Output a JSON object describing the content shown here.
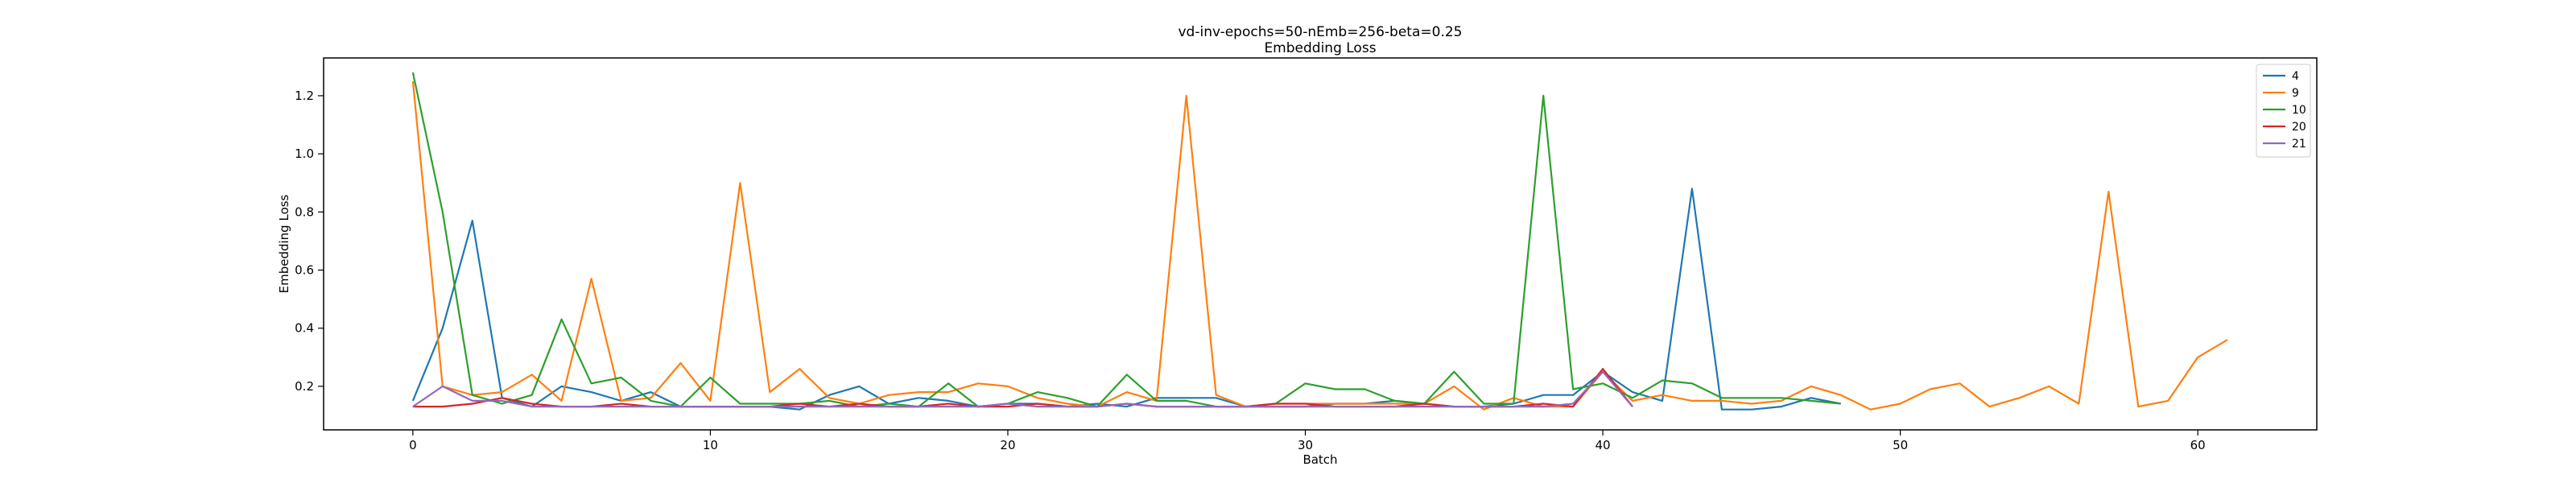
{
  "chart_data": {
    "type": "line",
    "title": "vd-inv-epochs=50-nEmb=256-beta=0.25",
    "subtitle": "Embedding Loss",
    "xlabel": "Batch",
    "ylabel": "Embedding Loss",
    "xlim": [
      -3,
      64
    ],
    "ylim": [
      0.05,
      1.33
    ],
    "xticks": [
      0,
      10,
      20,
      30,
      40,
      50,
      60
    ],
    "yticks": [
      0.2,
      0.4,
      0.6,
      0.8,
      1.0,
      1.2
    ],
    "xtick_labels": [
      "0",
      "10",
      "20",
      "30",
      "40",
      "50",
      "60"
    ],
    "ytick_labels": [
      "0.2",
      "0.4",
      "0.6",
      "0.8",
      "1.0",
      "1.2"
    ],
    "grid": false,
    "legend_position": "top-right",
    "series": [
      {
        "name": "4",
        "color": "#1f77b4",
        "values": [
          0.15,
          0.4,
          0.77,
          0.16,
          0.13,
          0.2,
          0.18,
          0.15,
          0.18,
          0.13,
          0.13,
          0.13,
          0.13,
          0.12,
          0.17,
          0.2,
          0.14,
          0.16,
          0.15,
          0.13,
          0.14,
          0.14,
          0.13,
          0.14,
          0.13,
          0.16,
          0.16,
          0.16,
          0.13,
          0.13,
          0.13,
          0.14,
          0.14,
          0.15,
          0.14,
          0.13,
          0.13,
          0.14,
          0.17,
          0.17,
          0.25,
          0.18,
          0.15,
          0.88,
          0.12,
          0.12,
          0.13,
          0.16,
          0.14
        ]
      },
      {
        "name": "9",
        "color": "#ff7f0e",
        "values": [
          1.25,
          0.2,
          0.17,
          0.18,
          0.24,
          0.15,
          0.57,
          0.15,
          0.16,
          0.28,
          0.15,
          0.9,
          0.18,
          0.26,
          0.16,
          0.14,
          0.17,
          0.18,
          0.18,
          0.21,
          0.2,
          0.16,
          0.14,
          0.13,
          0.18,
          0.15,
          1.2,
          0.17,
          0.13,
          0.14,
          0.14,
          0.14,
          0.14,
          0.14,
          0.14,
          0.2,
          0.12,
          0.16,
          0.13,
          0.13,
          0.25,
          0.15,
          0.17,
          0.15,
          0.15,
          0.14,
          0.15,
          0.2,
          0.17,
          0.12,
          0.14,
          0.19,
          0.21,
          0.13,
          0.16,
          0.2,
          0.14,
          0.87,
          0.13,
          0.15,
          0.3,
          0.36
        ]
      },
      {
        "name": "10",
        "color": "#2ca02c",
        "values": [
          1.28,
          0.8,
          0.17,
          0.14,
          0.17,
          0.43,
          0.21,
          0.23,
          0.15,
          0.13,
          0.23,
          0.14,
          0.14,
          0.14,
          0.15,
          0.13,
          0.14,
          0.13,
          0.21,
          0.13,
          0.14,
          0.18,
          0.16,
          0.13,
          0.24,
          0.15,
          0.15,
          0.13,
          0.13,
          0.14,
          0.21,
          0.19,
          0.19,
          0.15,
          0.14,
          0.25,
          0.14,
          0.14,
          1.2,
          0.19,
          0.21,
          0.16,
          0.22,
          0.21,
          0.16,
          0.16,
          0.16,
          0.15,
          0.14
        ]
      },
      {
        "name": "20",
        "color": "#d62728",
        "values": [
          0.13,
          0.13,
          0.14,
          0.16,
          0.14,
          0.13,
          0.13,
          0.14,
          0.13,
          0.13,
          0.13,
          0.13,
          0.13,
          0.14,
          0.13,
          0.14,
          0.13,
          0.13,
          0.14,
          0.13,
          0.13,
          0.14,
          0.13,
          0.13,
          0.14,
          0.13,
          0.13,
          0.13,
          0.13,
          0.14,
          0.14,
          0.13,
          0.13,
          0.13,
          0.14,
          0.13,
          0.13,
          0.13,
          0.14,
          0.13,
          0.26,
          0.13
        ]
      },
      {
        "name": "21",
        "color": "#9467bd",
        "values": [
          0.13,
          0.2,
          0.15,
          0.15,
          0.13,
          0.13,
          0.13,
          0.13,
          0.13,
          0.13,
          0.13,
          0.13,
          0.13,
          0.13,
          0.13,
          0.13,
          0.13,
          0.13,
          0.13,
          0.13,
          0.14,
          0.13,
          0.13,
          0.13,
          0.14,
          0.13,
          0.13,
          0.13,
          0.13,
          0.13,
          0.13,
          0.13,
          0.13,
          0.13,
          0.13,
          0.13,
          0.13,
          0.13,
          0.13,
          0.14,
          0.25,
          0.13
        ]
      }
    ]
  }
}
